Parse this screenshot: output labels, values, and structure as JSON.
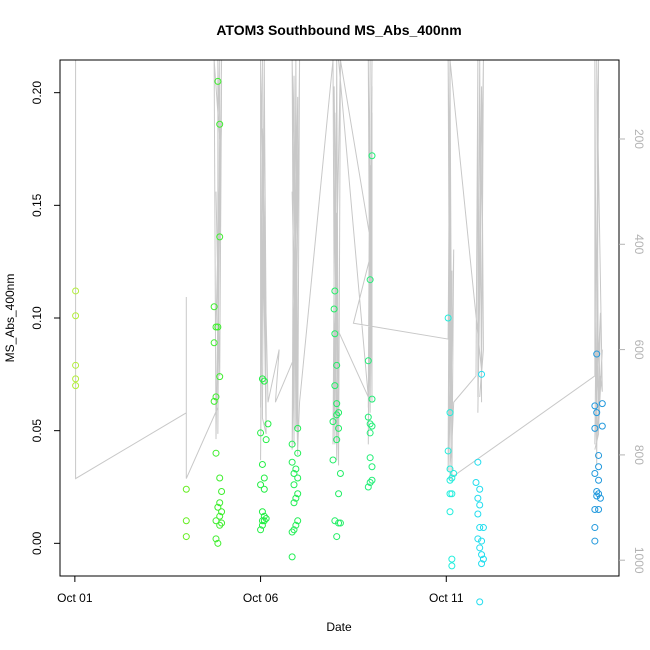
{
  "chart_data": {
    "type": "scatter",
    "title": "ATOM3 Southbound MS_Abs_400nm",
    "xlabel": "Date",
    "ylabel": "MS_Abs_400nm",
    "x_unit": "days since Oct 01",
    "xlim": [
      -0.4,
      14.65
    ],
    "ylim": [
      -0.0145,
      0.2145
    ],
    "x_ticks": [
      {
        "value": 0,
        "label": "Oct 01"
      },
      {
        "value": 5,
        "label": "Oct 06"
      },
      {
        "value": 10,
        "label": "Oct 11"
      }
    ],
    "y_ticks": [
      {
        "value": 0.0,
        "label": "0.00"
      },
      {
        "value": 0.05,
        "label": "0.05"
      },
      {
        "value": 0.1,
        "label": "0.10"
      },
      {
        "value": 0.15,
        "label": "0.15"
      },
      {
        "value": 0.2,
        "label": "0.20"
      }
    ],
    "y2_ticks": [
      {
        "value": 200,
        "label": "200"
      },
      {
        "value": 400,
        "label": "400"
      },
      {
        "value": 600,
        "label": "600"
      },
      {
        "value": 800,
        "label": "800"
      },
      {
        "value": 1000,
        "label": "1000"
      }
    ],
    "y2_range": [
      1030,
      50
    ],
    "grid": false,
    "points": [
      {
        "x": 0.02,
        "y": 0.112,
        "color": "#b3ee3a"
      },
      {
        "x": 0.02,
        "y": 0.101,
        "color": "#b3ee3a"
      },
      {
        "x": 0.02,
        "y": 0.079,
        "color": "#b3ee3a"
      },
      {
        "x": 0.02,
        "y": 0.073,
        "color": "#b3ee3a"
      },
      {
        "x": 0.02,
        "y": 0.07,
        "color": "#b3ee3a"
      },
      {
        "x": 3.0,
        "y": 0.024,
        "color": "#66ee22"
      },
      {
        "x": 3.0,
        "y": 0.01,
        "color": "#66ee22"
      },
      {
        "x": 3.0,
        "y": 0.003,
        "color": "#66ee22"
      },
      {
        "x": 3.85,
        "y": 0.205,
        "color": "#3fee2e"
      },
      {
        "x": 3.9,
        "y": 0.186,
        "color": "#3fee2e"
      },
      {
        "x": 3.9,
        "y": 0.136,
        "color": "#3fee2e"
      },
      {
        "x": 3.75,
        "y": 0.105,
        "color": "#3fee2e"
      },
      {
        "x": 3.8,
        "y": 0.096,
        "color": "#3fee2e"
      },
      {
        "x": 3.85,
        "y": 0.096,
        "color": "#3fee2e"
      },
      {
        "x": 3.75,
        "y": 0.089,
        "color": "#3fee2e"
      },
      {
        "x": 3.9,
        "y": 0.074,
        "color": "#3fee2e"
      },
      {
        "x": 3.8,
        "y": 0.065,
        "color": "#3fee2e"
      },
      {
        "x": 3.75,
        "y": 0.063,
        "color": "#3fee2e"
      },
      {
        "x": 3.8,
        "y": 0.04,
        "color": "#3fee2e"
      },
      {
        "x": 3.9,
        "y": 0.029,
        "color": "#3fee2e"
      },
      {
        "x": 3.95,
        "y": 0.023,
        "color": "#3fee2e"
      },
      {
        "x": 3.9,
        "y": 0.018,
        "color": "#3fee2e"
      },
      {
        "x": 3.85,
        "y": 0.016,
        "color": "#3fee2e"
      },
      {
        "x": 3.95,
        "y": 0.014,
        "color": "#3fee2e"
      },
      {
        "x": 3.9,
        "y": 0.012,
        "color": "#3fee2e"
      },
      {
        "x": 3.8,
        "y": 0.01,
        "color": "#3fee2e"
      },
      {
        "x": 3.95,
        "y": 0.009,
        "color": "#3fee2e"
      },
      {
        "x": 3.9,
        "y": 0.008,
        "color": "#3fee2e"
      },
      {
        "x": 3.8,
        "y": 0.002,
        "color": "#3fee2e"
      },
      {
        "x": 3.85,
        "y": 0.0,
        "color": "#3fee2e"
      },
      {
        "x": 5.05,
        "y": 0.073,
        "color": "#22ee44"
      },
      {
        "x": 5.1,
        "y": 0.072,
        "color": "#22ee44"
      },
      {
        "x": 5.2,
        "y": 0.053,
        "color": "#22ee44"
      },
      {
        "x": 5.0,
        "y": 0.049,
        "color": "#22ee44"
      },
      {
        "x": 5.15,
        "y": 0.046,
        "color": "#22ee44"
      },
      {
        "x": 5.05,
        "y": 0.035,
        "color": "#22ee44"
      },
      {
        "x": 5.1,
        "y": 0.029,
        "color": "#22ee44"
      },
      {
        "x": 5.0,
        "y": 0.026,
        "color": "#22ee44"
      },
      {
        "x": 5.1,
        "y": 0.024,
        "color": "#22ee44"
      },
      {
        "x": 5.05,
        "y": 0.014,
        "color": "#22ee44"
      },
      {
        "x": 5.1,
        "y": 0.012,
        "color": "#22ee44"
      },
      {
        "x": 5.15,
        "y": 0.011,
        "color": "#22ee44"
      },
      {
        "x": 5.05,
        "y": 0.01,
        "color": "#22ee44"
      },
      {
        "x": 5.1,
        "y": 0.01,
        "color": "#22ee44"
      },
      {
        "x": 5.05,
        "y": 0.008,
        "color": "#22ee44"
      },
      {
        "x": 5.0,
        "y": 0.006,
        "color": "#22ee44"
      },
      {
        "x": 6.0,
        "y": 0.051,
        "color": "#22ee55"
      },
      {
        "x": 5.85,
        "y": 0.044,
        "color": "#22ee55"
      },
      {
        "x": 6.0,
        "y": 0.04,
        "color": "#22ee55"
      },
      {
        "x": 5.85,
        "y": 0.036,
        "color": "#22ee55"
      },
      {
        "x": 5.95,
        "y": 0.033,
        "color": "#22ee55"
      },
      {
        "x": 5.9,
        "y": 0.031,
        "color": "#22ee55"
      },
      {
        "x": 6.0,
        "y": 0.029,
        "color": "#22ee55"
      },
      {
        "x": 5.9,
        "y": 0.026,
        "color": "#22ee55"
      },
      {
        "x": 6.0,
        "y": 0.022,
        "color": "#22ee55"
      },
      {
        "x": 5.95,
        "y": 0.02,
        "color": "#22ee55"
      },
      {
        "x": 5.9,
        "y": 0.018,
        "color": "#22ee55"
      },
      {
        "x": 6.0,
        "y": 0.01,
        "color": "#22ee55"
      },
      {
        "x": 5.95,
        "y": 0.008,
        "color": "#22ee55"
      },
      {
        "x": 5.9,
        "y": 0.006,
        "color": "#22ee55"
      },
      {
        "x": 5.85,
        "y": 0.005,
        "color": "#22ee55"
      },
      {
        "x": 5.85,
        "y": -0.006,
        "color": "#22ee55"
      },
      {
        "x": 7.0,
        "y": 0.112,
        "color": "#22ee66"
      },
      {
        "x": 6.98,
        "y": 0.104,
        "color": "#22ee66"
      },
      {
        "x": 7.0,
        "y": 0.093,
        "color": "#22ee66"
      },
      {
        "x": 7.05,
        "y": 0.079,
        "color": "#22ee66"
      },
      {
        "x": 7.0,
        "y": 0.07,
        "color": "#22ee66"
      },
      {
        "x": 7.05,
        "y": 0.062,
        "color": "#22ee66"
      },
      {
        "x": 7.1,
        "y": 0.058,
        "color": "#22ee66"
      },
      {
        "x": 7.05,
        "y": 0.057,
        "color": "#22ee66"
      },
      {
        "x": 6.95,
        "y": 0.054,
        "color": "#22ee66"
      },
      {
        "x": 7.1,
        "y": 0.051,
        "color": "#22ee66"
      },
      {
        "x": 7.05,
        "y": 0.046,
        "color": "#22ee66"
      },
      {
        "x": 6.95,
        "y": 0.037,
        "color": "#22ee66"
      },
      {
        "x": 7.15,
        "y": 0.031,
        "color": "#22ee66"
      },
      {
        "x": 7.1,
        "y": 0.022,
        "color": "#22ee66"
      },
      {
        "x": 7.0,
        "y": 0.01,
        "color": "#22ee66"
      },
      {
        "x": 7.1,
        "y": 0.009,
        "color": "#22ee66"
      },
      {
        "x": 7.15,
        "y": 0.009,
        "color": "#22ee66"
      },
      {
        "x": 7.05,
        "y": 0.003,
        "color": "#22ee66"
      },
      {
        "x": 8.0,
        "y": 0.172,
        "color": "#22ee77"
      },
      {
        "x": 7.95,
        "y": 0.117,
        "color": "#22ee77"
      },
      {
        "x": 7.9,
        "y": 0.081,
        "color": "#22ee77"
      },
      {
        "x": 8.0,
        "y": 0.064,
        "color": "#22ee77"
      },
      {
        "x": 7.9,
        "y": 0.056,
        "color": "#22ee77"
      },
      {
        "x": 7.95,
        "y": 0.053,
        "color": "#22ee77"
      },
      {
        "x": 8.0,
        "y": 0.052,
        "color": "#22ee77"
      },
      {
        "x": 7.95,
        "y": 0.049,
        "color": "#22ee77"
      },
      {
        "x": 7.95,
        "y": 0.038,
        "color": "#22ee77"
      },
      {
        "x": 8.0,
        "y": 0.034,
        "color": "#22ee77"
      },
      {
        "x": 8.0,
        "y": 0.028,
        "color": "#22ee77"
      },
      {
        "x": 7.95,
        "y": 0.027,
        "color": "#22ee77"
      },
      {
        "x": 7.9,
        "y": 0.025,
        "color": "#22ee77"
      },
      {
        "x": 10.05,
        "y": 0.1,
        "color": "#22eedd"
      },
      {
        "x": 10.1,
        "y": 0.058,
        "color": "#22eedd"
      },
      {
        "x": 10.05,
        "y": 0.041,
        "color": "#22eedd"
      },
      {
        "x": 10.1,
        "y": 0.033,
        "color": "#22eedd"
      },
      {
        "x": 10.2,
        "y": 0.031,
        "color": "#22eedd"
      },
      {
        "x": 10.15,
        "y": 0.029,
        "color": "#22eedd"
      },
      {
        "x": 10.1,
        "y": 0.028,
        "color": "#22eedd"
      },
      {
        "x": 10.15,
        "y": 0.022,
        "color": "#22eedd"
      },
      {
        "x": 10.1,
        "y": 0.022,
        "color": "#22eedd"
      },
      {
        "x": 10.1,
        "y": 0.014,
        "color": "#22eedd"
      },
      {
        "x": 10.15,
        "y": -0.007,
        "color": "#22eedd"
      },
      {
        "x": 10.15,
        "y": -0.01,
        "color": "#22eedd"
      },
      {
        "x": 10.95,
        "y": 0.075,
        "color": "#22ddee"
      },
      {
        "x": 10.85,
        "y": 0.036,
        "color": "#22ddee"
      },
      {
        "x": 10.8,
        "y": 0.027,
        "color": "#22ddee"
      },
      {
        "x": 10.9,
        "y": 0.024,
        "color": "#22ddee"
      },
      {
        "x": 10.85,
        "y": 0.02,
        "color": "#22ddee"
      },
      {
        "x": 10.9,
        "y": 0.017,
        "color": "#22ddee"
      },
      {
        "x": 10.85,
        "y": 0.013,
        "color": "#22ddee"
      },
      {
        "x": 10.9,
        "y": 0.007,
        "color": "#22ddee"
      },
      {
        "x": 11.0,
        "y": 0.007,
        "color": "#22ddee"
      },
      {
        "x": 10.85,
        "y": 0.002,
        "color": "#22ddee"
      },
      {
        "x": 10.95,
        "y": 0.001,
        "color": "#22ddee"
      },
      {
        "x": 10.9,
        "y": -0.002,
        "color": "#22ddee"
      },
      {
        "x": 10.95,
        "y": -0.005,
        "color": "#22ddee"
      },
      {
        "x": 11.0,
        "y": -0.007,
        "color": "#22ddee"
      },
      {
        "x": 10.95,
        "y": -0.009,
        "color": "#22ddee"
      },
      {
        "x": 10.9,
        "y": -0.026,
        "color": "#22ddee"
      },
      {
        "x": 14.05,
        "y": 0.084,
        "color": "#2299dd"
      },
      {
        "x": 14.2,
        "y": 0.062,
        "color": "#2299dd"
      },
      {
        "x": 14.0,
        "y": 0.061,
        "color": "#2299dd"
      },
      {
        "x": 14.05,
        "y": 0.058,
        "color": "#2299dd"
      },
      {
        "x": 14.2,
        "y": 0.052,
        "color": "#2299dd"
      },
      {
        "x": 14.0,
        "y": 0.051,
        "color": "#2299dd"
      },
      {
        "x": 14.1,
        "y": 0.039,
        "color": "#2299dd"
      },
      {
        "x": 14.1,
        "y": 0.034,
        "color": "#2299dd"
      },
      {
        "x": 14.0,
        "y": 0.031,
        "color": "#2299dd"
      },
      {
        "x": 14.1,
        "y": 0.028,
        "color": "#2299dd"
      },
      {
        "x": 14.05,
        "y": 0.023,
        "color": "#2299dd"
      },
      {
        "x": 14.1,
        "y": 0.022,
        "color": "#2299dd"
      },
      {
        "x": 14.05,
        "y": 0.021,
        "color": "#2299dd"
      },
      {
        "x": 14.15,
        "y": 0.02,
        "color": "#2299dd"
      },
      {
        "x": 14.1,
        "y": 0.015,
        "color": "#2299dd"
      },
      {
        "x": 14.0,
        "y": 0.015,
        "color": "#2299dd"
      },
      {
        "x": 14.0,
        "y": 0.007,
        "color": "#2299dd"
      },
      {
        "x": 14.0,
        "y": 0.001,
        "color": "#2299dd"
      }
    ],
    "altitude_line_color": "#c8c8c8",
    "altitude_track": [
      [
        0.02,
        50
      ],
      [
        0.02,
        845
      ],
      [
        3.0,
        720
      ],
      [
        3.0,
        500
      ],
      [
        3.0,
        845
      ],
      [
        3.85,
        710
      ],
      [
        3.9,
        50
      ],
      [
        3.85,
        50
      ],
      [
        3.9,
        200
      ],
      [
        3.75,
        50
      ],
      [
        3.8,
        770
      ],
      [
        3.95,
        50
      ],
      [
        3.85,
        620
      ],
      [
        3.95,
        90
      ],
      [
        3.9,
        650
      ],
      [
        3.8,
        300
      ],
      [
        3.85,
        480
      ],
      [
        3.95,
        170
      ],
      [
        3.8,
        560
      ],
      [
        3.9,
        230
      ],
      [
        3.85,
        760
      ],
      [
        3.85,
        50
      ],
      [
        5.0,
        50
      ],
      [
        5.0,
        710
      ],
      [
        5.05,
        50
      ],
      [
        5.0,
        810
      ],
      [
        5.1,
        50
      ],
      [
        5.15,
        740
      ],
      [
        5.05,
        180
      ],
      [
        5.15,
        560
      ],
      [
        5.1,
        90
      ],
      [
        5.05,
        730
      ],
      [
        5.15,
        760
      ],
      [
        5.0,
        60
      ],
      [
        5.2,
        700
      ],
      [
        5.5,
        600
      ],
      [
        5.4,
        700
      ],
      [
        6.0,
        600
      ],
      [
        5.85,
        50
      ],
      [
        5.9,
        780
      ],
      [
        5.95,
        50
      ],
      [
        6.0,
        700
      ],
      [
        5.85,
        300
      ],
      [
        6.0,
        800
      ],
      [
        5.9,
        200
      ],
      [
        5.95,
        750
      ],
      [
        6.0,
        120
      ],
      [
        5.85,
        790
      ],
      [
        5.9,
        80
      ],
      [
        5.95,
        640
      ],
      [
        6.05,
        50
      ],
      [
        6.0,
        790
      ],
      [
        6.05,
        700
      ],
      [
        6.95,
        50
      ],
      [
        7.0,
        780
      ],
      [
        7.05,
        50
      ],
      [
        7.1,
        820
      ],
      [
        6.98,
        100
      ],
      [
        7.05,
        810
      ],
      [
        7.0,
        150
      ],
      [
        7.1,
        820
      ],
      [
        7.15,
        50
      ],
      [
        6.95,
        780
      ],
      [
        7.0,
        240
      ],
      [
        7.1,
        750
      ],
      [
        7.05,
        340
      ],
      [
        7.1,
        820
      ],
      [
        7.0,
        550
      ],
      [
        7.9,
        690
      ],
      [
        7.95,
        50
      ],
      [
        7.9,
        780
      ],
      [
        8.0,
        100
      ],
      [
        7.95,
        700
      ],
      [
        8.0,
        50
      ],
      [
        7.9,
        710
      ],
      [
        7.95,
        250
      ],
      [
        8.0,
        700
      ],
      [
        8.0,
        150
      ],
      [
        7.95,
        720
      ],
      [
        7.9,
        50
      ],
      [
        8.0,
        690
      ],
      [
        7.9,
        690
      ],
      [
        7.1,
        50
      ],
      [
        7.15,
        50
      ],
      [
        8.0,
        410
      ],
      [
        7.5,
        550
      ],
      [
        10.05,
        580
      ],
      [
        10.1,
        50
      ],
      [
        10.05,
        800
      ],
      [
        10.1,
        100
      ],
      [
        10.05,
        830
      ],
      [
        10.15,
        450
      ],
      [
        10.1,
        780
      ],
      [
        10.2,
        410
      ],
      [
        10.15,
        850
      ],
      [
        10.1,
        50
      ],
      [
        10.15,
        760
      ],
      [
        10.05,
        50
      ],
      [
        10.1,
        820
      ],
      [
        10.15,
        780
      ],
      [
        10.2,
        700
      ],
      [
        10.8,
        650
      ],
      [
        10.85,
        50
      ],
      [
        10.85,
        690
      ],
      [
        10.9,
        50
      ],
      [
        10.95,
        700
      ],
      [
        10.9,
        80
      ],
      [
        10.95,
        650
      ],
      [
        11.0,
        50
      ],
      [
        10.85,
        720
      ],
      [
        10.95,
        100
      ],
      [
        11.0,
        600
      ],
      [
        10.9,
        690
      ],
      [
        10.95,
        640
      ],
      [
        10.1,
        50
      ],
      [
        10.1,
        845
      ],
      [
        14.0,
        650
      ],
      [
        14.0,
        50
      ],
      [
        14.05,
        820
      ],
      [
        14.1,
        50
      ],
      [
        14.0,
        780
      ],
      [
        14.15,
        530
      ],
      [
        14.1,
        750
      ],
      [
        14.2,
        600
      ],
      [
        14.05,
        780
      ],
      [
        14.15,
        650
      ],
      [
        14.2,
        680
      ],
      [
        14.05,
        50
      ],
      [
        14.1,
        760
      ],
      [
        14.0,
        790
      ]
    ]
  }
}
